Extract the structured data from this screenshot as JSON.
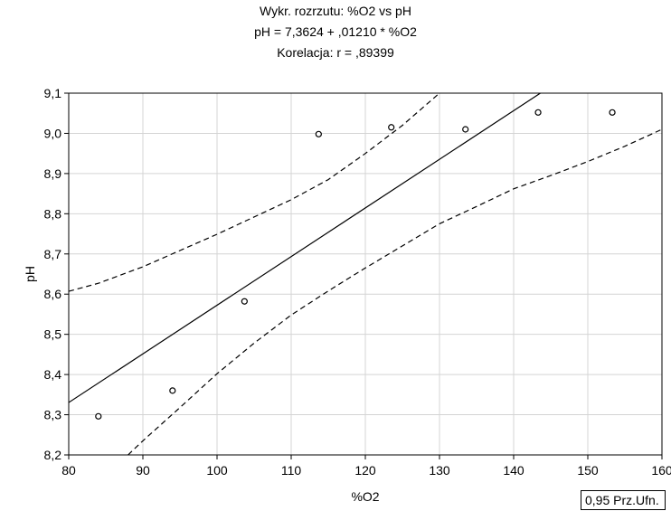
{
  "chart_data": {
    "type": "scatter",
    "title": "Wykr. rozrzutu: %O2 vs  pH",
    "subtitle": "pH       = 7,3624 + ,01210 * %O2",
    "correlation": "Korelacja: r =   ,89399",
    "xlabel": "%O2",
    "ylabel": "pH",
    "xlim": [
      80,
      160
    ],
    "ylim": [
      8.2,
      9.1
    ],
    "x_ticks": [
      "80",
      "90",
      "100",
      "110",
      "120",
      "130",
      "140",
      "150",
      "160"
    ],
    "y_ticks": [
      "8,2",
      "8,3",
      "8,4",
      "8,5",
      "8,6",
      "8,7",
      "8,8",
      "8,9",
      "9,0",
      "9,1"
    ],
    "grid": true,
    "points": [
      {
        "x": 84,
        "y": 8.296
      },
      {
        "x": 94,
        "y": 8.36
      },
      {
        "x": 103.7,
        "y": 8.582
      },
      {
        "x": 113.7,
        "y": 8.998
      },
      {
        "x": 123.5,
        "y": 9.015
      },
      {
        "x": 133.5,
        "y": 9.01
      },
      {
        "x": 143.3,
        "y": 9.052
      },
      {
        "x": 153.3,
        "y": 9.052
      }
    ],
    "regression": {
      "intercept": 7.3624,
      "slope": 0.0121
    },
    "confidence_upper": [
      {
        "x": 80,
        "y": 8.607
      },
      {
        "x": 84,
        "y": 8.627
      },
      {
        "x": 90,
        "y": 8.668
      },
      {
        "x": 100,
        "y": 8.749
      },
      {
        "x": 110,
        "y": 8.835
      },
      {
        "x": 115,
        "y": 8.885
      },
      {
        "x": 120,
        "y": 8.95
      },
      {
        "x": 125,
        "y": 9.02
      },
      {
        "x": 130,
        "y": 9.1
      }
    ],
    "confidence_lower": [
      {
        "x": 88,
        "y": 8.2
      },
      {
        "x": 90,
        "y": 8.235
      },
      {
        "x": 95,
        "y": 8.318
      },
      {
        "x": 100,
        "y": 8.402
      },
      {
        "x": 105,
        "y": 8.478
      },
      {
        "x": 110,
        "y": 8.548
      },
      {
        "x": 115,
        "y": 8.608
      },
      {
        "x": 120,
        "y": 8.665
      },
      {
        "x": 125,
        "y": 8.72
      },
      {
        "x": 130,
        "y": 8.775
      },
      {
        "x": 135,
        "y": 8.818
      },
      {
        "x": 140,
        "y": 8.862
      },
      {
        "x": 145,
        "y": 8.895
      },
      {
        "x": 150,
        "y": 8.93
      },
      {
        "x": 155,
        "y": 8.968
      },
      {
        "x": 160,
        "y": 9.01
      }
    ],
    "legend": "0,95 Prz.Ufn."
  }
}
